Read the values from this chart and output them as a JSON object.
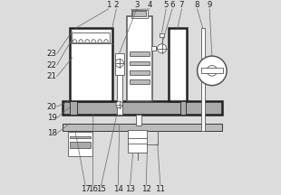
{
  "bg_color": "#dcdcdc",
  "line_color": "#555555",
  "dark_color": "#222222",
  "fill_gray": "#aaaaaa",
  "fill_light": "#bbbbbb",
  "fill_white": "#ffffff",
  "fill_dgray": "#888888"
}
